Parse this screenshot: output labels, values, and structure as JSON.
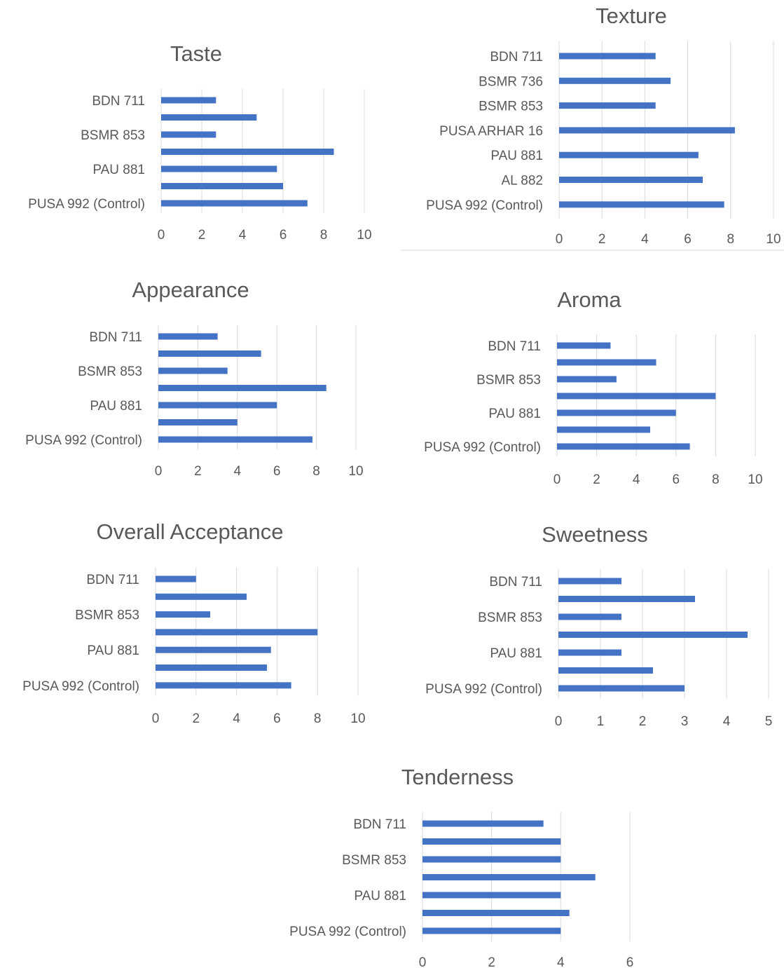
{
  "colors": {
    "bar": "#4472c4",
    "grid": "#d9d9d9",
    "text": "#595959"
  },
  "chart_data": [
    {
      "type": "bar",
      "orientation": "horizontal",
      "title": "Taste",
      "categories": [
        "BDN 711",
        "",
        "BSMR 853",
        "",
        "PAU 881",
        "",
        "PUSA 992 (Control)"
      ],
      "values": [
        2.7,
        4.7,
        2.7,
        8.5,
        5.7,
        6.0,
        7.2
      ],
      "xlim": [
        0,
        10
      ],
      "xticks": [
        "0",
        "2",
        "4",
        "6",
        "8",
        "10"
      ],
      "grid": true
    },
    {
      "type": "bar",
      "orientation": "horizontal",
      "title": "Texture",
      "categories": [
        "BDN 711",
        "BSMR 736",
        "BSMR 853",
        "PUSA ARHAR 16",
        "PAU 881",
        "AL 882",
        "PUSA 992 (Control)"
      ],
      "values": [
        4.5,
        5.2,
        4.5,
        8.2,
        6.5,
        6.7,
        7.7
      ],
      "xlim": [
        0,
        10
      ],
      "xticks": [
        "0",
        "2",
        "4",
        "6",
        "8",
        "10"
      ],
      "grid": true
    },
    {
      "type": "bar",
      "orientation": "horizontal",
      "title": "Appearance",
      "categories": [
        "BDN 711",
        "",
        "BSMR 853",
        "",
        "PAU 881",
        "",
        "PUSA 992 (Control)"
      ],
      "values": [
        3.0,
        5.2,
        3.5,
        8.5,
        6.0,
        4.0,
        7.8
      ],
      "xlim": [
        0,
        10
      ],
      "xticks": [
        "0",
        "2",
        "4",
        "6",
        "8",
        "10"
      ],
      "grid": true
    },
    {
      "type": "bar",
      "orientation": "horizontal",
      "title": "Aroma",
      "categories": [
        "BDN 711",
        "",
        "BSMR 853",
        "",
        "PAU 881",
        "",
        "PUSA 992 (Control)"
      ],
      "values": [
        2.7,
        5.0,
        3.0,
        8.0,
        6.0,
        4.7,
        6.7
      ],
      "xlim": [
        0,
        10
      ],
      "xticks": [
        "0",
        "2",
        "4",
        "6",
        "8",
        "10"
      ],
      "grid": true
    },
    {
      "type": "bar",
      "orientation": "horizontal",
      "title": "Overall Acceptance",
      "categories": [
        "BDN 711",
        "",
        "BSMR 853",
        "",
        "PAU 881",
        "",
        "PUSA 992 (Control)"
      ],
      "values": [
        2.0,
        4.5,
        2.7,
        8.0,
        5.7,
        5.5,
        6.7
      ],
      "xlim": [
        0,
        10
      ],
      "xticks": [
        "0",
        "2",
        "4",
        "6",
        "8",
        "10"
      ],
      "grid": true
    },
    {
      "type": "bar",
      "orientation": "horizontal",
      "title": "Sweetness",
      "categories": [
        "BDN 711",
        "",
        "BSMR 853",
        "",
        "PAU 881",
        "",
        "PUSA 992 (Control)"
      ],
      "values": [
        1.5,
        3.25,
        1.5,
        4.5,
        1.5,
        2.25,
        3.0
      ],
      "xlim": [
        0,
        5
      ],
      "xticks": [
        "0",
        "1",
        "2",
        "3",
        "4",
        "5"
      ],
      "grid": true
    },
    {
      "type": "bar",
      "orientation": "horizontal",
      "title": "Tenderness",
      "categories": [
        "BDN 711",
        "",
        "BSMR 853",
        "",
        "PAU 881",
        "",
        "PUSA 992 (Control)"
      ],
      "values": [
        3.5,
        4.0,
        4.0,
        5.0,
        4.0,
        4.25,
        4.0
      ],
      "xlim": [
        0,
        6
      ],
      "xticks": [
        "0",
        "2",
        "4",
        "6"
      ],
      "grid": true
    }
  ]
}
